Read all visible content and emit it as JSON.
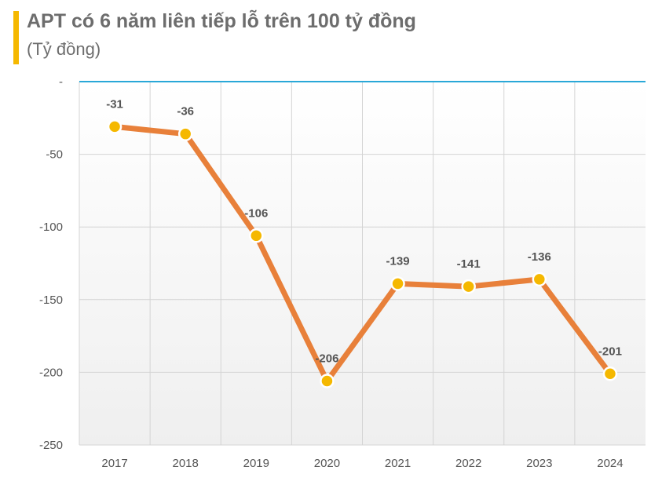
{
  "header": {
    "title": "APT có 6 năm liên tiếp lỗ trên 100 tỷ đồng",
    "subtitle": "(Tỷ đồng)"
  },
  "chart_data": {
    "type": "line",
    "title": "APT có 6 năm liên tiếp lỗ trên 100 tỷ đồng",
    "subtitle": "(Tỷ đồng)",
    "categories": [
      "2017",
      "2018",
      "2019",
      "2020",
      "2021",
      "2022",
      "2023",
      "2024"
    ],
    "series": [
      {
        "values": [
          -31,
          -36,
          -106,
          -206,
          -139,
          -141,
          -136,
          -201
        ]
      }
    ],
    "data_labels": [
      "-31",
      "-36",
      "-106",
      "-206",
      "-139",
      "-141",
      "-136",
      "-201"
    ],
    "ylim": [
      -250,
      0
    ],
    "y_ticks": [
      0,
      -50,
      -100,
      -150,
      -200,
      -250
    ],
    "y_tick_labels": [
      "-",
      "-50",
      "-100",
      "-150",
      "-200",
      "-250"
    ],
    "grid": true,
    "legend": "none",
    "colors": {
      "line": "#e8803a",
      "marker": "#f5b800",
      "marker_outline": "#ffffff",
      "zero_line": "#2aa8d8",
      "grid": "#d4d4d4",
      "accent_bar": "#f5b800"
    }
  }
}
